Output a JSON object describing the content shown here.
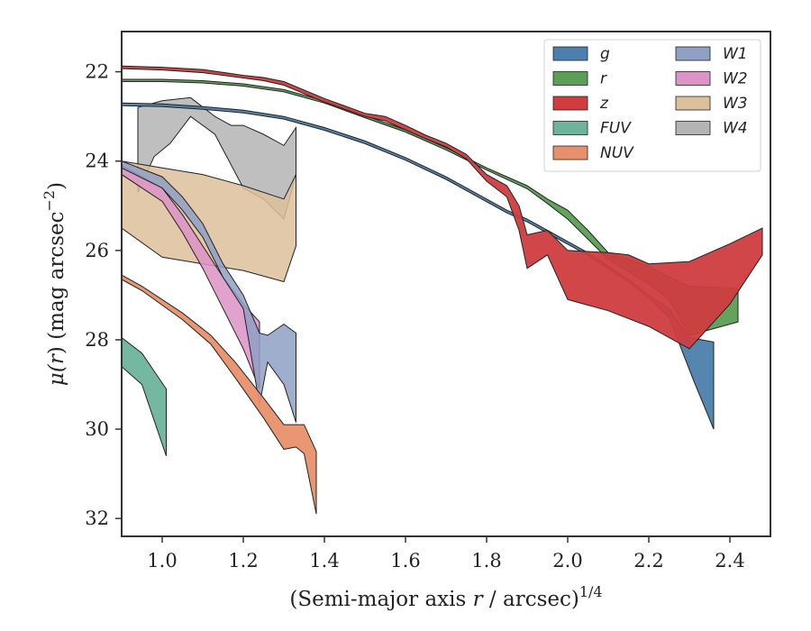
{
  "chart_data": {
    "type": "area",
    "xlabel_main": "(Semi-major axis ",
    "xlabel_var": "r",
    "xlabel_rest": " / arcsec)",
    "xlabel_sup": "1/4",
    "ylabel_main": "μ(",
    "ylabel_var": "r",
    "ylabel_rest": ") (mag arcsec",
    "ylabel_sup": "−2",
    "ylabel_close": ")",
    "xlim": [
      0.9,
      2.5
    ],
    "ylim": [
      21.1,
      32.4
    ],
    "y_inverted": true,
    "xticks": [
      1.0,
      1.2,
      1.4,
      1.6,
      1.8,
      2.0,
      2.2,
      2.4
    ],
    "xtick_labels": [
      "1.0",
      "1.2",
      "1.4",
      "1.6",
      "1.8",
      "2.0",
      "2.2",
      "2.4"
    ],
    "yticks": [
      22,
      24,
      26,
      28,
      30,
      32
    ],
    "ytick_labels": [
      "22",
      "24",
      "26",
      "28",
      "30",
      "32"
    ],
    "grid": false,
    "legend_placement": "top-right",
    "series": [
      {
        "name": "g",
        "color": "#4c7fac",
        "upper": [
          [
            0.9,
            22.7
          ],
          [
            1.0,
            22.72
          ],
          [
            1.1,
            22.78
          ],
          [
            1.2,
            22.86
          ],
          [
            1.3,
            23.0
          ],
          [
            1.4,
            23.25
          ],
          [
            1.5,
            23.55
          ],
          [
            1.6,
            23.92
          ],
          [
            1.7,
            24.35
          ],
          [
            1.8,
            24.85
          ],
          [
            1.85,
            25.1
          ],
          [
            1.9,
            25.3
          ],
          [
            1.95,
            25.55
          ],
          [
            2.0,
            25.8
          ],
          [
            2.05,
            26.05
          ],
          [
            2.1,
            26.35
          ],
          [
            2.15,
            26.65
          ],
          [
            2.2,
            27.0
          ],
          [
            2.25,
            27.3
          ],
          [
            2.3,
            27.95
          ],
          [
            2.36,
            28.05
          ]
        ],
        "lower": [
          [
            0.9,
            22.76
          ],
          [
            1.0,
            22.78
          ],
          [
            1.1,
            22.84
          ],
          [
            1.2,
            22.92
          ],
          [
            1.3,
            23.06
          ],
          [
            1.4,
            23.31
          ],
          [
            1.5,
            23.61
          ],
          [
            1.6,
            23.98
          ],
          [
            1.7,
            24.41
          ],
          [
            1.8,
            24.91
          ],
          [
            1.85,
            25.16
          ],
          [
            1.9,
            25.36
          ],
          [
            1.95,
            25.61
          ],
          [
            2.0,
            25.86
          ],
          [
            2.05,
            26.11
          ],
          [
            2.1,
            26.41
          ],
          [
            2.15,
            26.71
          ],
          [
            2.2,
            27.06
          ],
          [
            2.25,
            27.5
          ],
          [
            2.31,
            28.9
          ],
          [
            2.36,
            30.0
          ]
        ]
      },
      {
        "name": "r",
        "color": "#5b9e55",
        "upper": [
          [
            0.9,
            22.17
          ],
          [
            1.0,
            22.17
          ],
          [
            1.1,
            22.2
          ],
          [
            1.2,
            22.27
          ],
          [
            1.3,
            22.4
          ],
          [
            1.4,
            22.65
          ],
          [
            1.5,
            22.98
          ],
          [
            1.6,
            23.3
          ],
          [
            1.7,
            23.7
          ],
          [
            1.8,
            24.15
          ],
          [
            1.9,
            24.55
          ],
          [
            1.95,
            24.85
          ],
          [
            2.0,
            25.1
          ],
          [
            2.05,
            25.55
          ],
          [
            2.1,
            26.05
          ],
          [
            2.2,
            26.35
          ],
          [
            2.25,
            26.6
          ],
          [
            2.3,
            26.8
          ],
          [
            2.42,
            26.85
          ]
        ],
        "lower": [
          [
            0.9,
            22.22
          ],
          [
            1.0,
            22.22
          ],
          [
            1.1,
            22.25
          ],
          [
            1.2,
            22.32
          ],
          [
            1.3,
            22.45
          ],
          [
            1.4,
            22.7
          ],
          [
            1.5,
            23.03
          ],
          [
            1.6,
            23.35
          ],
          [
            1.7,
            23.75
          ],
          [
            1.8,
            24.2
          ],
          [
            1.9,
            24.62
          ],
          [
            1.95,
            24.95
          ],
          [
            2.0,
            25.3
          ],
          [
            2.05,
            25.75
          ],
          [
            2.1,
            26.2
          ],
          [
            2.2,
            26.75
          ],
          [
            2.25,
            27.1
          ],
          [
            2.3,
            27.9
          ],
          [
            2.42,
            27.6
          ]
        ]
      },
      {
        "name": "z",
        "color": "#cf3d3f",
        "upper": [
          [
            0.9,
            21.87
          ],
          [
            1.0,
            21.9
          ],
          [
            1.1,
            21.95
          ],
          [
            1.2,
            22.08
          ],
          [
            1.25,
            22.13
          ],
          [
            1.3,
            22.22
          ],
          [
            1.4,
            22.6
          ],
          [
            1.5,
            22.93
          ],
          [
            1.55,
            23.0
          ],
          [
            1.6,
            23.2
          ],
          [
            1.65,
            23.42
          ],
          [
            1.7,
            23.6
          ],
          [
            1.75,
            23.85
          ],
          [
            1.8,
            24.3
          ],
          [
            1.85,
            24.55
          ],
          [
            1.88,
            25.0
          ],
          [
            1.9,
            25.65
          ],
          [
            1.95,
            25.55
          ],
          [
            2.0,
            26.0
          ],
          [
            2.1,
            26.05
          ],
          [
            2.15,
            26.1
          ],
          [
            2.2,
            26.3
          ],
          [
            2.3,
            26.25
          ],
          [
            2.4,
            25.85
          ],
          [
            2.48,
            25.5
          ]
        ],
        "lower": [
          [
            0.9,
            21.93
          ],
          [
            1.0,
            21.96
          ],
          [
            1.1,
            22.02
          ],
          [
            1.2,
            22.14
          ],
          [
            1.25,
            22.2
          ],
          [
            1.3,
            22.3
          ],
          [
            1.4,
            22.68
          ],
          [
            1.5,
            23.0
          ],
          [
            1.55,
            23.1
          ],
          [
            1.6,
            23.3
          ],
          [
            1.65,
            23.5
          ],
          [
            1.7,
            23.68
          ],
          [
            1.75,
            23.95
          ],
          [
            1.8,
            24.45
          ],
          [
            1.85,
            24.8
          ],
          [
            1.88,
            25.55
          ],
          [
            1.9,
            26.4
          ],
          [
            1.95,
            26.1
          ],
          [
            2.0,
            27.1
          ],
          [
            2.1,
            27.35
          ],
          [
            2.2,
            27.7
          ],
          [
            2.3,
            28.2
          ],
          [
            2.4,
            27.2
          ],
          [
            2.48,
            26.1
          ]
        ]
      },
      {
        "name": "FUV",
        "color": "#6db49c",
        "upper": [
          [
            0.9,
            27.95
          ],
          [
            0.95,
            28.3
          ],
          [
            1.01,
            29.1
          ]
        ],
        "lower": [
          [
            0.9,
            28.6
          ],
          [
            0.95,
            29.0
          ],
          [
            1.01,
            30.6
          ]
        ]
      },
      {
        "name": "NUV",
        "color": "#e8906c",
        "upper": [
          [
            0.9,
            26.55
          ],
          [
            0.95,
            26.8
          ],
          [
            1.05,
            27.4
          ],
          [
            1.12,
            27.9
          ],
          [
            1.18,
            28.5
          ],
          [
            1.25,
            29.3
          ],
          [
            1.3,
            29.9
          ],
          [
            1.35,
            29.9
          ],
          [
            1.38,
            30.5
          ]
        ],
        "lower": [
          [
            0.9,
            26.65
          ],
          [
            0.95,
            26.9
          ],
          [
            1.05,
            27.55
          ],
          [
            1.12,
            28.1
          ],
          [
            1.18,
            28.85
          ],
          [
            1.25,
            29.75
          ],
          [
            1.3,
            30.45
          ],
          [
            1.33,
            30.4
          ],
          [
            1.35,
            30.55
          ],
          [
            1.38,
            31.9
          ]
        ]
      },
      {
        "name": "W1",
        "color": "#8fa0c4",
        "upper": [
          [
            0.9,
            24.0
          ],
          [
            1.0,
            24.35
          ],
          [
            1.05,
            24.8
          ],
          [
            1.1,
            25.4
          ],
          [
            1.15,
            26.3
          ],
          [
            1.2,
            27.0
          ],
          [
            1.24,
            27.85
          ],
          [
            1.26,
            27.9
          ],
          [
            1.3,
            27.65
          ],
          [
            1.33,
            27.85
          ]
        ],
        "lower": [
          [
            0.9,
            24.15
          ],
          [
            1.0,
            24.6
          ],
          [
            1.05,
            25.1
          ],
          [
            1.1,
            25.7
          ],
          [
            1.15,
            26.6
          ],
          [
            1.2,
            27.3
          ],
          [
            1.24,
            29.45
          ],
          [
            1.26,
            28.5
          ],
          [
            1.3,
            29.0
          ],
          [
            1.33,
            29.85
          ]
        ]
      },
      {
        "name": "W2",
        "color": "#dc93c5",
        "upper": [
          [
            0.9,
            24.1
          ],
          [
            1.0,
            24.6
          ],
          [
            1.05,
            25.2
          ],
          [
            1.1,
            25.9
          ],
          [
            1.15,
            26.6
          ],
          [
            1.2,
            27.2
          ],
          [
            1.24,
            27.6
          ]
        ],
        "lower": [
          [
            0.9,
            24.3
          ],
          [
            1.0,
            24.9
          ],
          [
            1.05,
            25.6
          ],
          [
            1.1,
            26.4
          ],
          [
            1.15,
            27.3
          ],
          [
            1.2,
            28.2
          ],
          [
            1.24,
            29.1
          ]
        ]
      },
      {
        "name": "W3",
        "color": "#dcc09b",
        "upper": [
          [
            0.9,
            24.0
          ],
          [
            1.0,
            24.15
          ],
          [
            1.1,
            24.3
          ],
          [
            1.2,
            24.55
          ],
          [
            1.3,
            24.85
          ],
          [
            1.33,
            24.3
          ]
        ],
        "lower": [
          [
            0.9,
            25.5
          ],
          [
            1.0,
            26.15
          ],
          [
            1.1,
            26.3
          ],
          [
            1.2,
            26.45
          ],
          [
            1.3,
            26.7
          ],
          [
            1.33,
            25.9
          ]
        ]
      },
      {
        "name": "W4",
        "color": "#b4b4b4",
        "upper": [
          [
            0.94,
            22.8
          ],
          [
            1.0,
            22.65
          ],
          [
            1.07,
            22.58
          ],
          [
            1.13,
            23.0
          ],
          [
            1.17,
            23.2
          ],
          [
            1.2,
            23.2
          ],
          [
            1.25,
            23.4
          ],
          [
            1.3,
            23.65
          ],
          [
            1.33,
            23.25
          ]
        ],
        "lower": [
          [
            0.94,
            24.7
          ],
          [
            0.98,
            23.9
          ],
          [
            1.02,
            23.6
          ],
          [
            1.07,
            23.0
          ],
          [
            1.13,
            23.4
          ],
          [
            1.2,
            24.6
          ],
          [
            1.25,
            24.85
          ],
          [
            1.3,
            25.3
          ],
          [
            1.33,
            24.3
          ]
        ]
      }
    ]
  }
}
